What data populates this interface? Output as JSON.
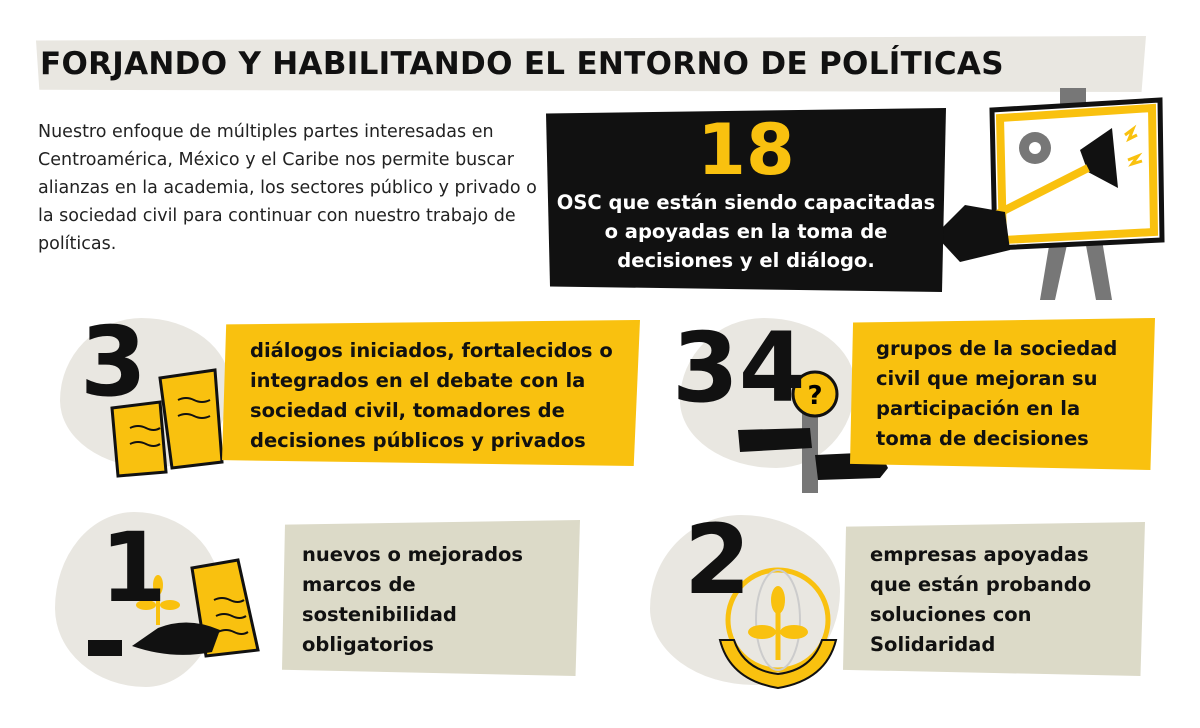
{
  "header": {
    "title": "FORJANDO Y HABILITANDO EL ENTORNO DE POLÍTICAS"
  },
  "intro": "Nuestro enfoque de múltiples partes interesadas en Centroamérica, México y el Caribe nos permite buscar alianzas en la academia, los sectores público y privado o la sociedad civil para continuar con nuestro trabajo de políticas.",
  "highlight": {
    "number": 18,
    "text": "OSC que están siendo capacitadas o apoyadas en la toma de decisiones y el diálogo."
  },
  "stats": [
    {
      "number": 3,
      "text": "diálogos iniciados, fortalecidos o integrados en el debate con la sociedad civil, tomadores de decisiones públicos y privados"
    },
    {
      "number": 34,
      "text": "grupos de la sociedad civil que mejoran su participación en la toma de decisiones"
    },
    {
      "number": 1,
      "text": "nuevos o mejorados marcos de sostenibilidad obligatorios"
    },
    {
      "number": 2,
      "text": "empresas apoyadas que están probando soluciones con Solidaridad"
    }
  ]
}
